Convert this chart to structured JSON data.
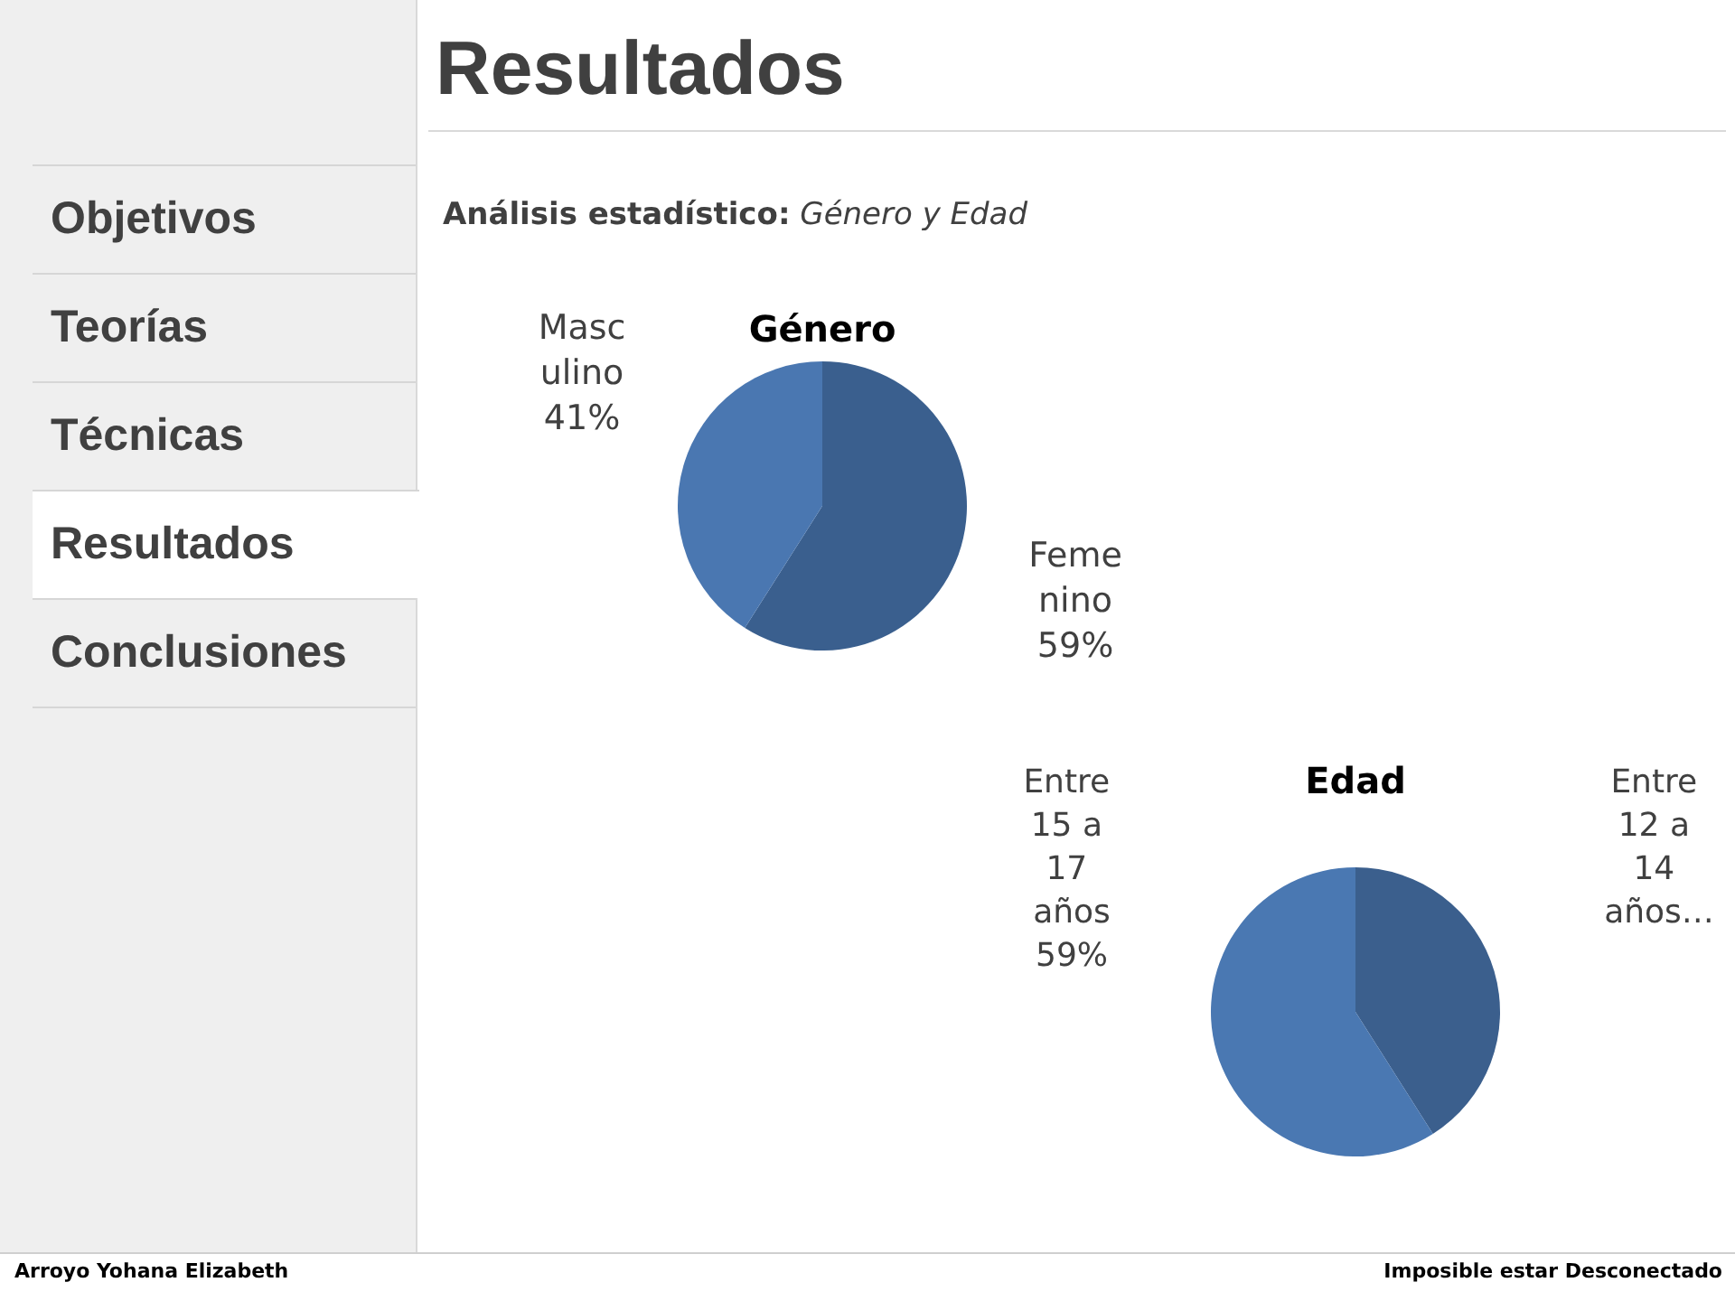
{
  "chart_data": [
    {
      "type": "other",
      "title": "Resultados",
      "subtitle": "Análisis estadístico: Género y Edad",
      "annotations": [
        "Objetivos",
        "Teorías",
        "Técnicas",
        "Resultados",
        "Conclusiones",
        "Arroyo Yohana Elizabeth",
        "Imposible estar Desconectado"
      ]
    },
    {
      "type": "pie",
      "title": "Género",
      "categories": [
        "Femenino",
        "Masculino"
      ],
      "values": [
        59,
        41
      ],
      "colors": [
        "#3a5f8e",
        "#4a77b1"
      ],
      "value_labels": [
        "59%",
        "41%"
      ]
    },
    {
      "type": "pie",
      "title": "Edad",
      "categories": [
        "Entre 12 a 14 años…",
        "Entre 15 a 17 años"
      ],
      "values": [
        41,
        59
      ],
      "colors": [
        "#3b5f8d",
        "#4a78b2"
      ],
      "value_labels": [
        null,
        "59%"
      ]
    }
  ]
}
